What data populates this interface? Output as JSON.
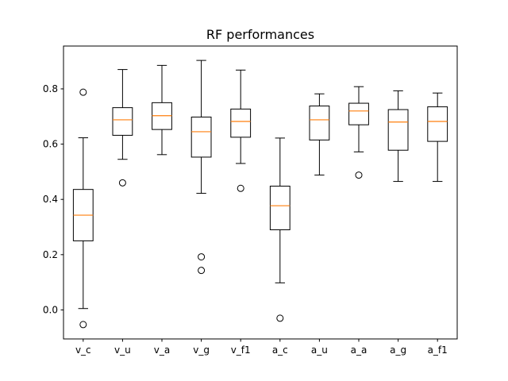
{
  "chart_data": {
    "type": "boxplot",
    "title": "RF performances",
    "xlabel": "",
    "ylabel": "",
    "ylim": [
      -0.105,
      0.955
    ],
    "yticks": [
      0.0,
      0.2,
      0.4,
      0.6,
      0.8
    ],
    "ytick_labels": [
      "0.0",
      "0.2",
      "0.4",
      "0.6",
      "0.8"
    ],
    "grid": false,
    "colors": {
      "box": "#000000",
      "median": "#ff7f0e",
      "outlier": "#000000"
    },
    "categories": [
      "v_c",
      "v_u",
      "v_a",
      "v_g",
      "v_f1",
      "a_c",
      "a_u",
      "a_a",
      "a_g",
      "a_f1"
    ],
    "boxes": [
      {
        "label": "v_c",
        "whisker_low": 0.005,
        "q1": 0.25,
        "median": 0.343,
        "q3": 0.436,
        "whisker_high": 0.623,
        "outliers": [
          0.788,
          -0.053
        ]
      },
      {
        "label": "v_u",
        "whisker_low": 0.545,
        "q1": 0.632,
        "median": 0.688,
        "q3": 0.732,
        "whisker_high": 0.87,
        "outliers": [
          0.46
        ]
      },
      {
        "label": "v_a",
        "whisker_low": 0.562,
        "q1": 0.653,
        "median": 0.703,
        "q3": 0.75,
        "whisker_high": 0.885,
        "outliers": []
      },
      {
        "label": "v_g",
        "whisker_low": 0.422,
        "q1": 0.553,
        "median": 0.645,
        "q3": 0.698,
        "whisker_high": 0.903,
        "outliers": [
          0.192,
          0.143
        ]
      },
      {
        "label": "v_f1",
        "whisker_low": 0.53,
        "q1": 0.625,
        "median": 0.682,
        "q3": 0.727,
        "whisker_high": 0.868,
        "outliers": [
          0.44
        ]
      },
      {
        "label": "a_c",
        "whisker_low": 0.098,
        "q1": 0.29,
        "median": 0.377,
        "q3": 0.448,
        "whisker_high": 0.622,
        "outliers": [
          -0.03
        ]
      },
      {
        "label": "a_u",
        "whisker_low": 0.488,
        "q1": 0.615,
        "median": 0.688,
        "q3": 0.738,
        "whisker_high": 0.782,
        "outliers": []
      },
      {
        "label": "a_a",
        "whisker_low": 0.572,
        "q1": 0.67,
        "median": 0.72,
        "q3": 0.748,
        "whisker_high": 0.808,
        "outliers": [
          0.488
        ]
      },
      {
        "label": "a_g",
        "whisker_low": 0.465,
        "q1": 0.578,
        "median": 0.68,
        "q3": 0.725,
        "whisker_high": 0.793,
        "outliers": []
      },
      {
        "label": "a_f1",
        "whisker_low": 0.465,
        "q1": 0.61,
        "median": 0.682,
        "q3": 0.735,
        "whisker_high": 0.785,
        "outliers": []
      }
    ]
  }
}
